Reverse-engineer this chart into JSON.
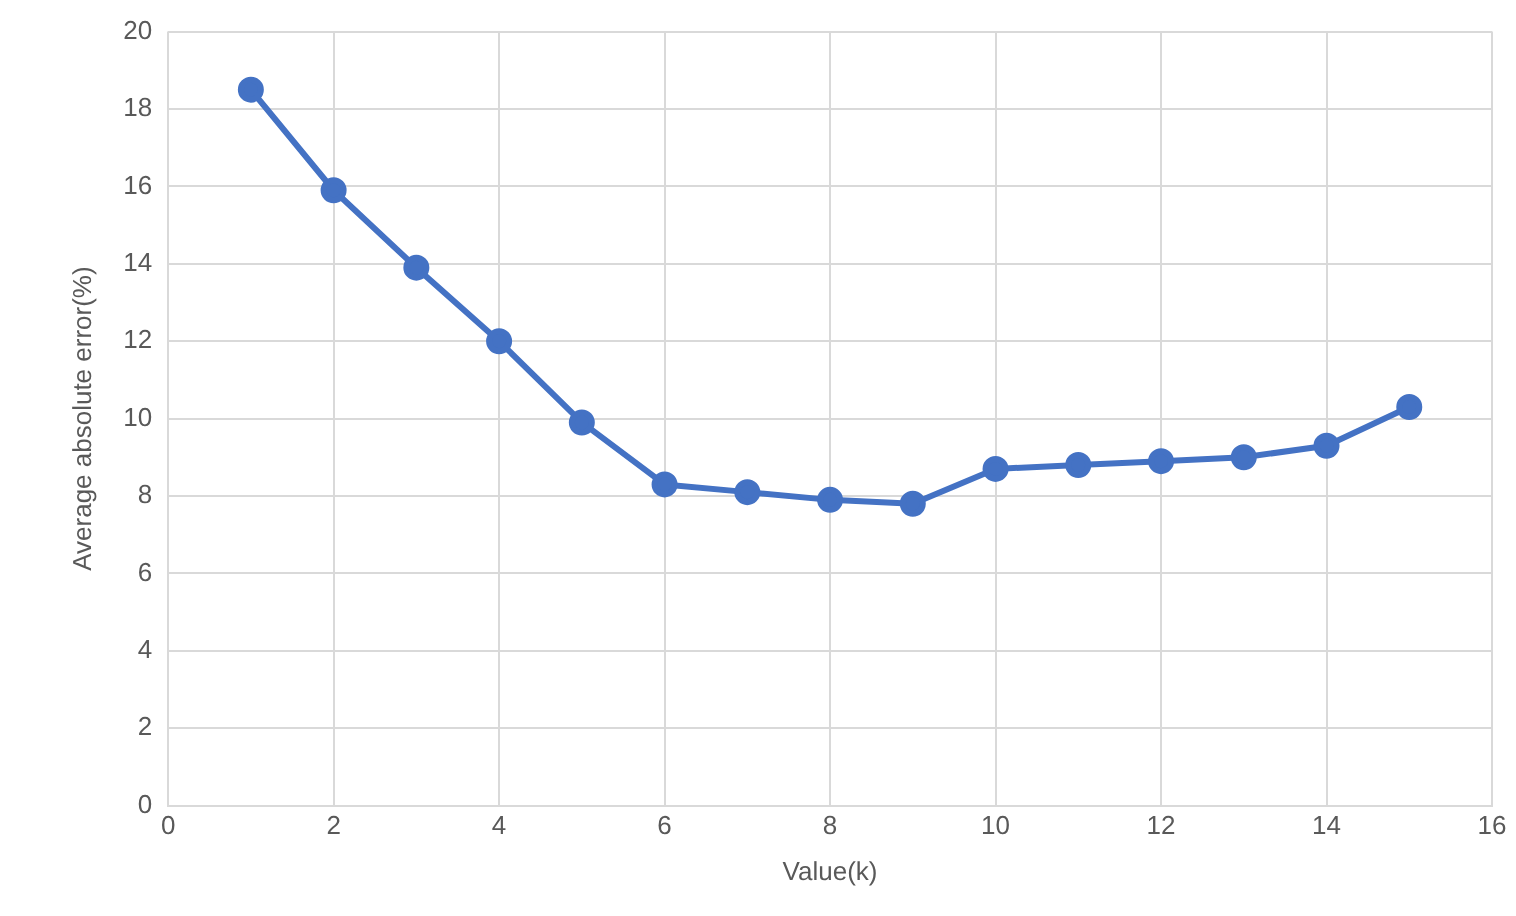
{
  "chart_data": {
    "type": "line",
    "xlabel": "Value(k)",
    "ylabel": "Average absolute error(%)",
    "x": [
      1,
      2,
      3,
      4,
      5,
      6,
      7,
      8,
      9,
      10,
      11,
      12,
      13,
      14,
      15
    ],
    "series": [
      {
        "color": "#4472c4",
        "values": [
          18.5,
          15.9,
          13.9,
          12.0,
          9.9,
          8.3,
          8.1,
          7.9,
          7.8,
          8.7,
          8.8,
          8.9,
          9.0,
          9.3,
          10.3
        ]
      }
    ],
    "xlim": [
      0,
      16
    ],
    "xticks": [
      0,
      2,
      4,
      6,
      8,
      10,
      12,
      14,
      16
    ],
    "ylim": [
      0,
      20
    ],
    "yticks": [
      0,
      2,
      4,
      6,
      8,
      10,
      12,
      14,
      16,
      18,
      20
    ],
    "grid": true,
    "legend": false,
    "marker": "circle",
    "line_style": "solid"
  }
}
